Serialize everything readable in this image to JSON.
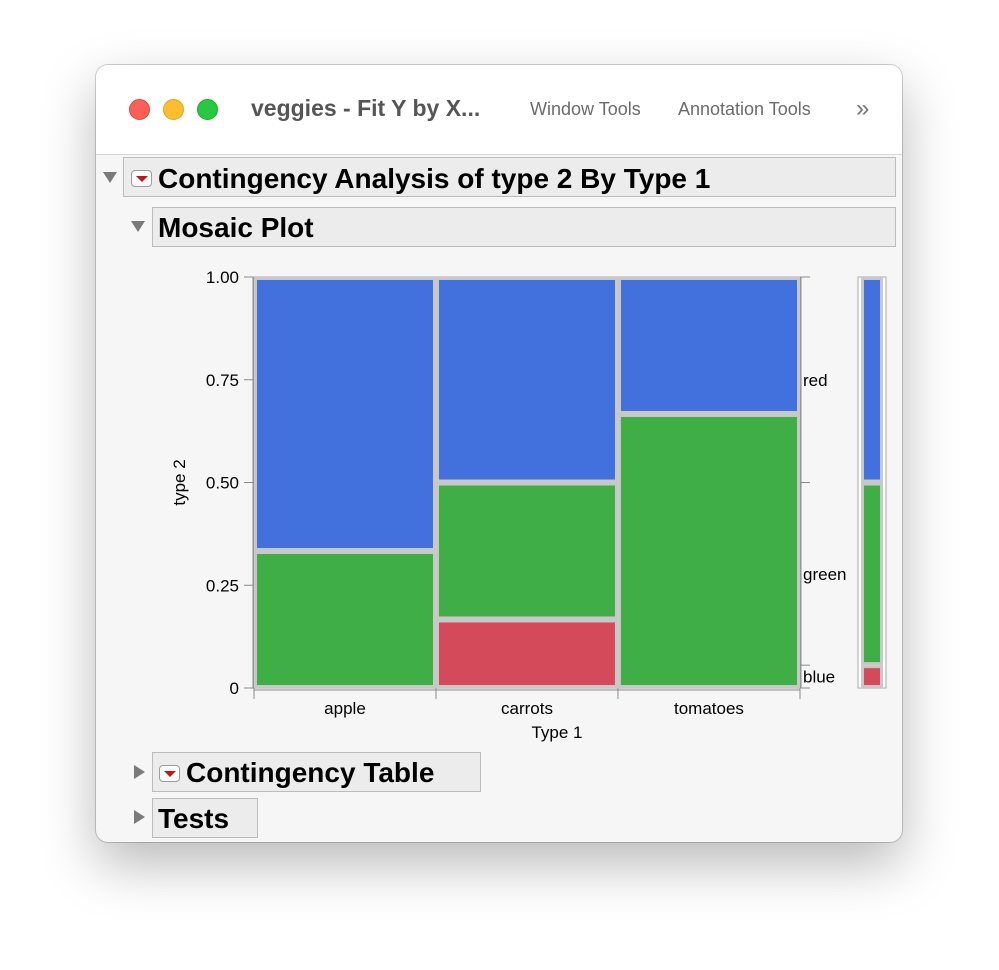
{
  "window": {
    "title": "veggies - Fit Y by X...",
    "menus": [
      "Window Tools",
      "Annotation Tools"
    ],
    "overflow_glyph": "»"
  },
  "outline": {
    "root_title": "Contingency Analysis of type 2 By Type 1",
    "mosaic_title": "Mosaic Plot",
    "table_title": "Contingency Table",
    "tests_title": "Tests"
  },
  "colors": {
    "red": "#d44a5a",
    "green": "#3fae46",
    "blue": "#4270dc",
    "cell_border": "#c8c8c8"
  },
  "chart_data": {
    "type": "mosaic",
    "xlabel": "Type 1",
    "ylabel": "type 2",
    "ylim": [
      0,
      1
    ],
    "y_ticks": [
      {
        "value": 0,
        "label": "0"
      },
      {
        "value": 0.25,
        "label": "0.25"
      },
      {
        "value": 0.5,
        "label": "0.50"
      },
      {
        "value": 0.75,
        "label": "0.75"
      },
      {
        "value": 1,
        "label": "1.00"
      }
    ],
    "categories": [
      "apple",
      "carrots",
      "tomatoes"
    ],
    "category_widths": [
      0.3333,
      0.3333,
      0.3334
    ],
    "series": [
      {
        "name": "red",
        "color": "#d44a5a",
        "values": [
          0,
          0.1667,
          0
        ]
      },
      {
        "name": "green",
        "color": "#3fae46",
        "values": [
          0.3333,
          0.3333,
          0.6667
        ]
      },
      {
        "name": "blue",
        "color": "#4270dc",
        "values": [
          0.6667,
          0.5,
          0.3333
        ]
      }
    ],
    "right_labels": [
      "red",
      "green",
      "blue"
    ],
    "marginal": [
      {
        "name": "red",
        "color": "#d44a5a",
        "value": 0.0556
      },
      {
        "name": "green",
        "color": "#3fae46",
        "value": 0.4444
      },
      {
        "name": "blue",
        "color": "#4270dc",
        "value": 0.5
      }
    ]
  }
}
